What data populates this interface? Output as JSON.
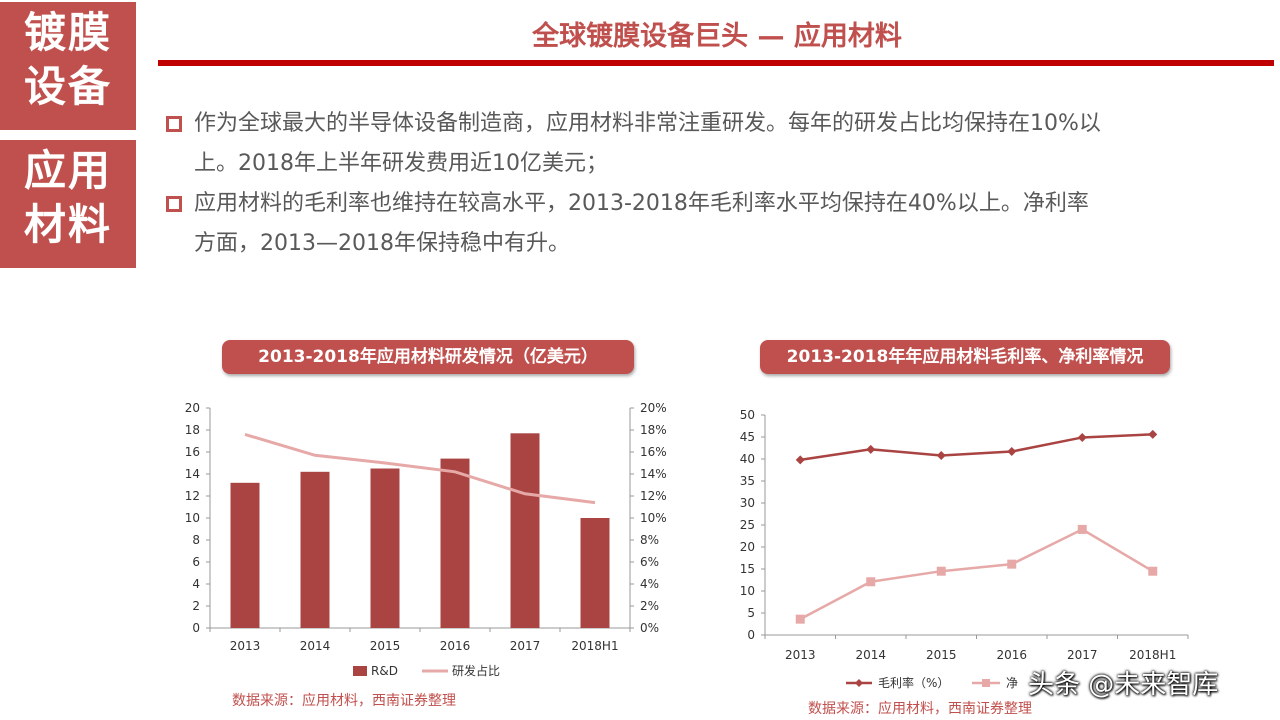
{
  "sidebar": {
    "block1": [
      "镀膜",
      "设备"
    ],
    "block2": [
      "应用",
      "材料"
    ]
  },
  "title": "全球镀膜设备巨头 — 应用材料",
  "bullets": [
    {
      "line1": "作为全球最大的半导体设备制造商，应用材料非常注重研发。每年的研发占比均保持在10%以",
      "line2": "上。2018年上半年研发费用近10亿美元；"
    },
    {
      "line1": "应用材料的毛利率也维持在较高水平，2013-2018年毛利率水平均保持在40%以上。净利率",
      "line2": "方面，2013—2018年保持稳中有升。"
    }
  ],
  "colors": {
    "accent": "#c0504d",
    "bar": "#a94442",
    "line_light": "#e6a9a7",
    "title_bar": "#c00000"
  },
  "chart_data": [
    {
      "type": "bar",
      "title": "2013-2018年应用材料研发情况（亿美元）",
      "categories": [
        "2013",
        "2014",
        "2015",
        "2016",
        "2017",
        "2018H1"
      ],
      "series": [
        {
          "name": "R&D",
          "type": "bar",
          "axis": "left",
          "values": [
            13.2,
            14.2,
            14.5,
            15.4,
            17.7,
            10.0
          ]
        },
        {
          "name": "研发占比",
          "type": "line",
          "axis": "right",
          "values": [
            17.6,
            15.7,
            15.0,
            14.2,
            12.2,
            11.4
          ]
        }
      ],
      "ylim": [
        0,
        20
      ],
      "y_ticks": [
        "0",
        "2",
        "4",
        "6",
        "8",
        "10",
        "12",
        "14",
        "16",
        "18",
        "20"
      ],
      "y2lim": [
        0,
        20
      ],
      "y2_ticks": [
        "0%",
        "2%",
        "4%",
        "6%",
        "8%",
        "10%",
        "12%",
        "14%",
        "16%",
        "18%",
        "20%"
      ],
      "legend_position": "bottom",
      "source": "数据来源：应用材料，西南证券整理"
    },
    {
      "type": "line",
      "title": "2013-2018年年应用材料毛利率、净利率情况",
      "categories": [
        "2013",
        "2014",
        "2015",
        "2016",
        "2017",
        "2018H1"
      ],
      "series": [
        {
          "name": "毛利率（%）",
          "marker": "diamond",
          "values": [
            39.8,
            42.2,
            40.8,
            41.7,
            44.9,
            45.6
          ]
        },
        {
          "name": "净",
          "marker": "square",
          "values": [
            3.6,
            12.1,
            14.5,
            16.1,
            24.0,
            14.5
          ]
        }
      ],
      "ylim": [
        0,
        50
      ],
      "y_ticks": [
        "0",
        "5",
        "10",
        "15",
        "20",
        "25",
        "30",
        "35",
        "40",
        "45",
        "50"
      ],
      "legend_position": "bottom",
      "source": "数据来源：应用材料，西南证券整理"
    }
  ],
  "watermark": "头条 @未来智库"
}
